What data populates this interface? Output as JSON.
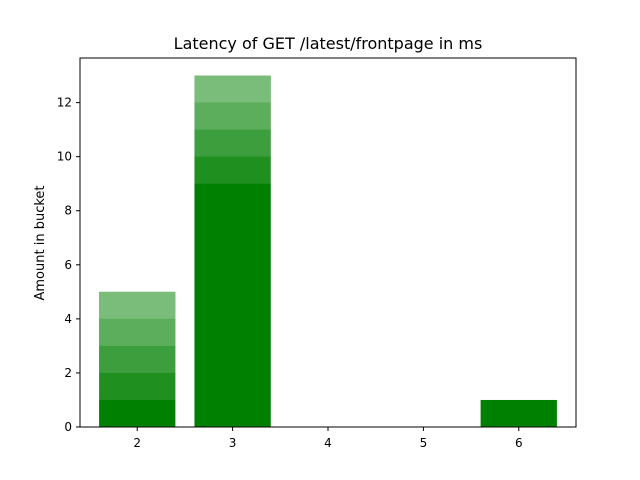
{
  "chart_data": {
    "type": "bar",
    "title": "Latency of GET /latest/frontpage in ms",
    "xlabel": "",
    "ylabel": "Amount in bucket",
    "categories": [
      2,
      3,
      4,
      5,
      6
    ],
    "values": [
      5,
      13,
      0,
      0,
      1
    ],
    "xlim": [
      1.4,
      6.6
    ],
    "ylim": [
      0,
      13.65
    ],
    "x_ticks": [
      2,
      3,
      4,
      5,
      6
    ],
    "y_ticks": [
      0,
      2,
      4,
      6,
      8,
      10,
      12
    ],
    "bar_color": "#008000",
    "grid": false,
    "legend": "none"
  }
}
